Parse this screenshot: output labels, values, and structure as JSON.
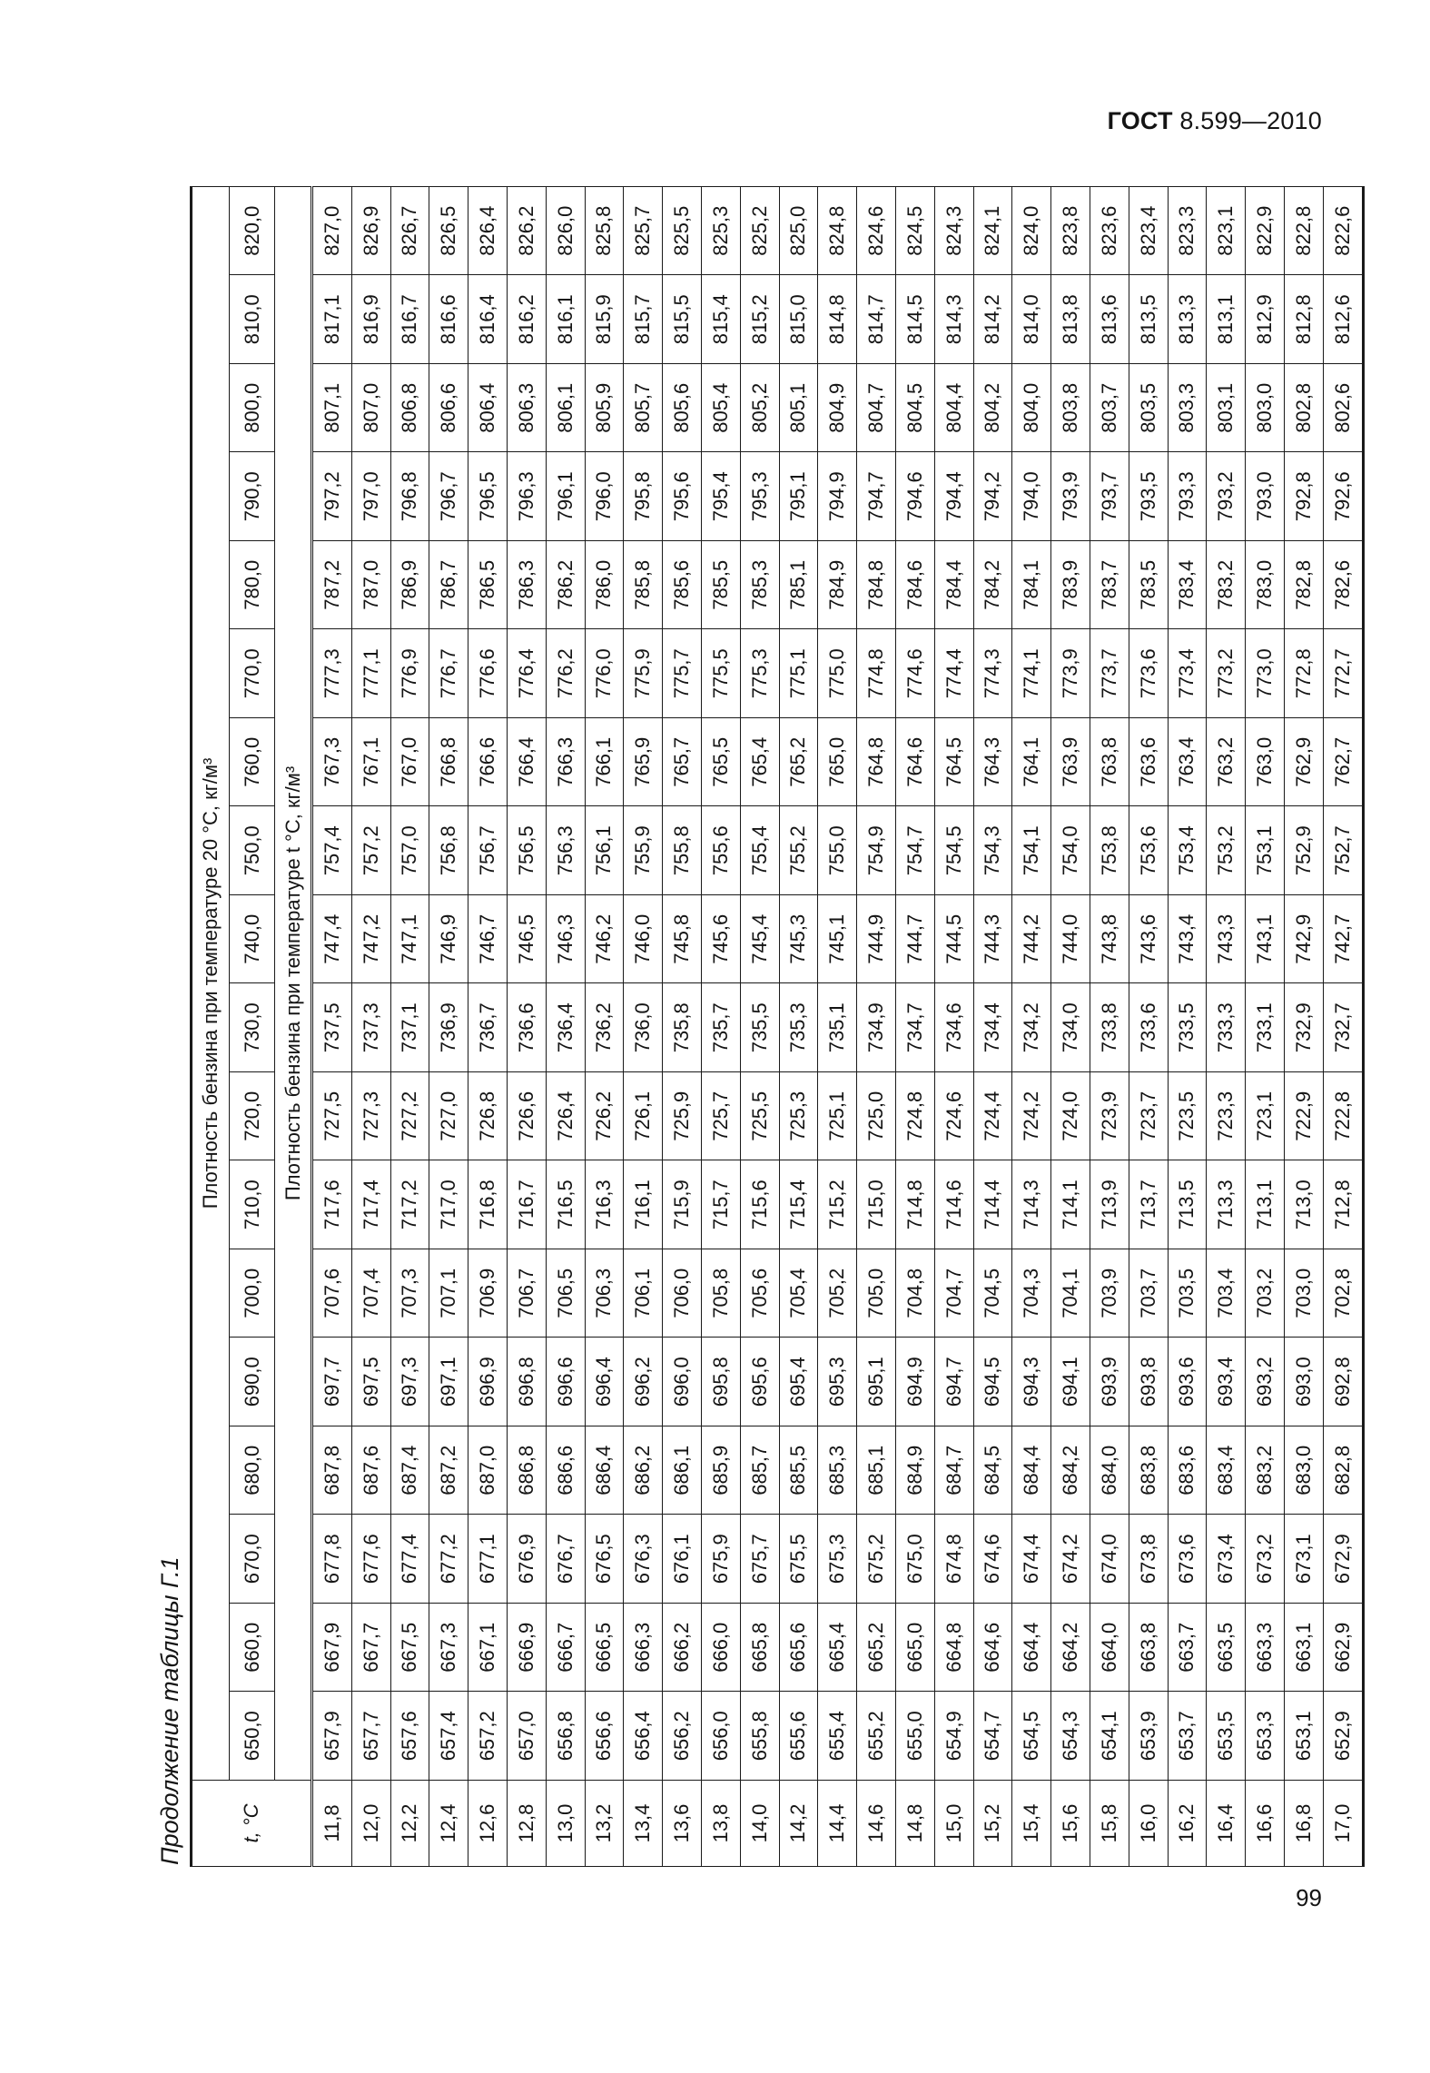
{
  "header": {
    "standard_bold": "ГОСТ",
    "standard_number": "8.599—2010"
  },
  "page_number": "99",
  "caption": "Продолжение таблицы Г.1",
  "table": {
    "t_header": "t, °C",
    "group_header": "Плотность бензина при температуре 20 °C, кг/м³",
    "sub_header": "Плотность бензина при температуре t °C, кг/м³",
    "columns": [
      "650,0",
      "660,0",
      "670,0",
      "680,0",
      "690,0",
      "700,0",
      "710,0",
      "720,0",
      "730,0",
      "740,0",
      "750,0",
      "760,0",
      "770,0",
      "780,0",
      "790,0",
      "800,0",
      "810,0",
      "820,0"
    ],
    "rows": [
      {
        "t": "11,8",
        "v": [
          "657,9",
          "667,9",
          "677,8",
          "687,8",
          "697,7",
          "707,6",
          "717,6",
          "727,5",
          "737,5",
          "747,4",
          "757,4",
          "767,3",
          "777,3",
          "787,2",
          "797,2",
          "807,1",
          "817,1",
          "827,0"
        ]
      },
      {
        "t": "12,0",
        "v": [
          "657,7",
          "667,7",
          "677,6",
          "687,6",
          "697,5",
          "707,4",
          "717,4",
          "727,3",
          "737,3",
          "747,2",
          "757,2",
          "767,1",
          "777,1",
          "787,0",
          "797,0",
          "807,0",
          "816,9",
          "826,9"
        ]
      },
      {
        "t": "12,2",
        "v": [
          "657,6",
          "667,5",
          "677,4",
          "687,4",
          "697,3",
          "707,3",
          "717,2",
          "727,2",
          "737,1",
          "747,1",
          "757,0",
          "767,0",
          "776,9",
          "786,9",
          "796,8",
          "806,8",
          "816,7",
          "826,7"
        ]
      },
      {
        "t": "12,4",
        "v": [
          "657,4",
          "667,3",
          "677,2",
          "687,2",
          "697,1",
          "707,1",
          "717,0",
          "727,0",
          "736,9",
          "746,9",
          "756,8",
          "766,8",
          "776,7",
          "786,7",
          "796,7",
          "806,6",
          "816,6",
          "826,5"
        ]
      },
      {
        "t": "12,6",
        "v": [
          "657,2",
          "667,1",
          "677,1",
          "687,0",
          "696,9",
          "706,9",
          "716,8",
          "726,8",
          "736,7",
          "746,7",
          "756,7",
          "766,6",
          "776,6",
          "786,5",
          "796,5",
          "806,4",
          "816,4",
          "826,4"
        ]
      },
      {
        "t": "12,8",
        "v": [
          "657,0",
          "666,9",
          "676,9",
          "686,8",
          "696,8",
          "706,7",
          "716,7",
          "726,6",
          "736,6",
          "746,5",
          "756,5",
          "766,4",
          "776,4",
          "786,3",
          "796,3",
          "806,3",
          "816,2",
          "826,2"
        ]
      },
      {
        "t": "13,0",
        "v": [
          "656,8",
          "666,7",
          "676,7",
          "686,6",
          "696,6",
          "706,5",
          "716,5",
          "726,4",
          "736,4",
          "746,3",
          "756,3",
          "766,3",
          "776,2",
          "786,2",
          "796,1",
          "806,1",
          "816,1",
          "826,0"
        ]
      },
      {
        "t": "13,2",
        "v": [
          "656,6",
          "666,5",
          "676,5",
          "686,4",
          "696,4",
          "706,3",
          "716,3",
          "726,2",
          "736,2",
          "746,2",
          "756,1",
          "766,1",
          "776,0",
          "786,0",
          "796,0",
          "805,9",
          "815,9",
          "825,8"
        ]
      },
      {
        "t": "13,4",
        "v": [
          "656,4",
          "666,3",
          "676,3",
          "686,2",
          "696,2",
          "706,1",
          "716,1",
          "726,1",
          "736,0",
          "746,0",
          "755,9",
          "765,9",
          "775,9",
          "785,8",
          "795,8",
          "805,7",
          "815,7",
          "825,7"
        ]
      },
      {
        "t": "13,6",
        "v": [
          "656,2",
          "666,2",
          "676,1",
          "686,1",
          "696,0",
          "706,0",
          "715,9",
          "725,9",
          "735,8",
          "745,8",
          "755,8",
          "765,7",
          "775,7",
          "785,6",
          "795,6",
          "805,6",
          "815,5",
          "825,5"
        ]
      },
      {
        "t": "13,8",
        "v": [
          "656,0",
          "666,0",
          "675,9",
          "685,9",
          "695,8",
          "705,8",
          "715,7",
          "725,7",
          "735,7",
          "745,6",
          "755,6",
          "765,5",
          "775,5",
          "785,5",
          "795,4",
          "805,4",
          "815,4",
          "825,3"
        ]
      },
      {
        "t": "14,0",
        "v": [
          "655,8",
          "665,8",
          "675,7",
          "685,7",
          "695,6",
          "705,6",
          "715,6",
          "725,5",
          "735,5",
          "745,4",
          "755,4",
          "765,4",
          "775,3",
          "785,3",
          "795,3",
          "805,2",
          "815,2",
          "825,2"
        ]
      },
      {
        "t": "14,2",
        "v": [
          "655,6",
          "665,6",
          "675,5",
          "685,5",
          "695,4",
          "705,4",
          "715,4",
          "725,3",
          "735,3",
          "745,3",
          "755,2",
          "765,2",
          "775,1",
          "785,1",
          "795,1",
          "805,1",
          "815,0",
          "825,0"
        ]
      },
      {
        "t": "14,4",
        "v": [
          "655,4",
          "665,4",
          "675,3",
          "685,3",
          "695,3",
          "705,2",
          "715,2",
          "725,1",
          "735,1",
          "745,1",
          "755,0",
          "765,0",
          "775,0",
          "784,9",
          "794,9",
          "804,9",
          "814,8",
          "824,8"
        ]
      },
      {
        "t": "14,6",
        "v": [
          "655,2",
          "665,2",
          "675,2",
          "685,1",
          "695,1",
          "705,0",
          "715,0",
          "725,0",
          "734,9",
          "744,9",
          "754,9",
          "764,8",
          "774,8",
          "784,8",
          "794,7",
          "804,7",
          "814,7",
          "824,6"
        ]
      },
      {
        "t": "14,8",
        "v": [
          "655,0",
          "665,0",
          "675,0",
          "684,9",
          "694,9",
          "704,8",
          "714,8",
          "724,8",
          "734,7",
          "744,7",
          "754,7",
          "764,6",
          "774,6",
          "784,6",
          "794,6",
          "804,5",
          "814,5",
          "824,5"
        ]
      },
      {
        "t": "15,0",
        "v": [
          "654,9",
          "664,8",
          "674,8",
          "684,7",
          "694,7",
          "704,7",
          "714,6",
          "724,6",
          "734,6",
          "744,5",
          "754,5",
          "764,5",
          "774,4",
          "784,4",
          "794,4",
          "804,4",
          "814,3",
          "824,3"
        ]
      },
      {
        "t": "15,2",
        "v": [
          "654,7",
          "664,6",
          "674,6",
          "684,5",
          "694,5",
          "704,5",
          "714,4",
          "724,4",
          "734,4",
          "744,3",
          "754,3",
          "764,3",
          "774,3",
          "784,2",
          "794,2",
          "804,2",
          "814,2",
          "824,1"
        ]
      },
      {
        "t": "15,4",
        "v": [
          "654,5",
          "664,4",
          "674,4",
          "684,4",
          "694,3",
          "704,3",
          "714,3",
          "724,2",
          "734,2",
          "744,2",
          "754,1",
          "764,1",
          "774,1",
          "784,1",
          "794,0",
          "804,0",
          "814,0",
          "824,0"
        ]
      },
      {
        "t": "15,6",
        "v": [
          "654,3",
          "664,2",
          "674,2",
          "684,2",
          "694,1",
          "704,1",
          "714,1",
          "724,0",
          "734,0",
          "744,0",
          "754,0",
          "763,9",
          "773,9",
          "783,9",
          "793,9",
          "803,8",
          "813,8",
          "823,8"
        ]
      },
      {
        "t": "15,8",
        "v": [
          "654,1",
          "664,0",
          "674,0",
          "684,0",
          "693,9",
          "703,9",
          "713,9",
          "723,9",
          "733,8",
          "743,8",
          "753,8",
          "763,8",
          "773,7",
          "783,7",
          "793,7",
          "803,7",
          "813,6",
          "823,6"
        ]
      },
      {
        "t": "16,0",
        "v": [
          "653,9",
          "663,8",
          "673,8",
          "683,8",
          "693,8",
          "703,7",
          "713,7",
          "723,7",
          "733,6",
          "743,6",
          "753,6",
          "763,6",
          "773,6",
          "783,5",
          "793,5",
          "803,5",
          "813,5",
          "823,4"
        ]
      },
      {
        "t": "16,2",
        "v": [
          "653,7",
          "663,7",
          "673,6",
          "683,6",
          "693,6",
          "703,5",
          "713,5",
          "723,5",
          "733,5",
          "743,4",
          "753,4",
          "763,4",
          "773,4",
          "783,4",
          "793,3",
          "803,3",
          "813,3",
          "823,3"
        ]
      },
      {
        "t": "16,4",
        "v": [
          "653,5",
          "663,5",
          "673,4",
          "683,4",
          "693,4",
          "703,4",
          "713,3",
          "723,3",
          "733,3",
          "743,3",
          "753,2",
          "763,2",
          "773,2",
          "783,2",
          "793,2",
          "803,1",
          "813,1",
          "823,1"
        ]
      },
      {
        "t": "16,6",
        "v": [
          "653,3",
          "663,3",
          "673,2",
          "683,2",
          "693,2",
          "703,2",
          "713,1",
          "723,1",
          "733,1",
          "743,1",
          "753,1",
          "763,0",
          "773,0",
          "783,0",
          "793,0",
          "803,0",
          "812,9",
          "822,9"
        ]
      },
      {
        "t": "16,8",
        "v": [
          "653,1",
          "663,1",
          "673,1",
          "683,0",
          "693,0",
          "703,0",
          "713,0",
          "722,9",
          "732,9",
          "742,9",
          "752,9",
          "762,9",
          "772,8",
          "782,8",
          "792,8",
          "802,8",
          "812,8",
          "822,8"
        ]
      },
      {
        "t": "17,0",
        "v": [
          "652,9",
          "662,9",
          "672,9",
          "682,8",
          "692,8",
          "702,8",
          "712,8",
          "722,8",
          "732,7",
          "742,7",
          "752,7",
          "762,7",
          "772,7",
          "782,6",
          "792,6",
          "802,6",
          "812,6",
          "822,6"
        ]
      }
    ]
  }
}
